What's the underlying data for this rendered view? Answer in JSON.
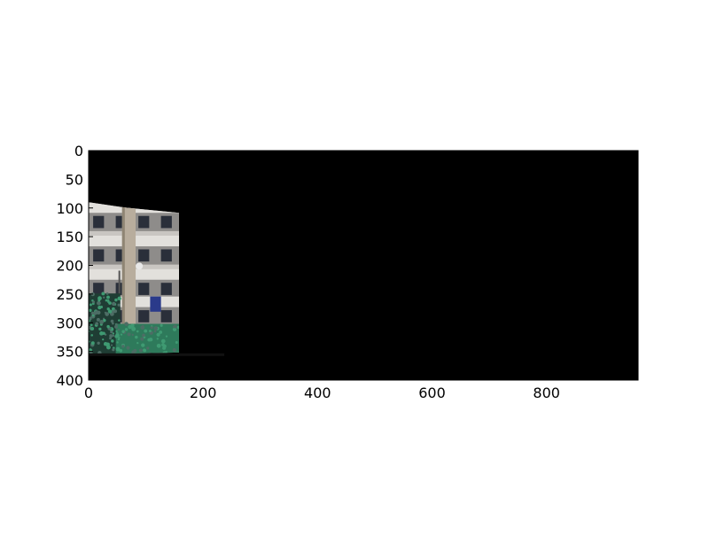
{
  "chart_data": {
    "type": "image",
    "title": "",
    "xlabel": "",
    "ylabel": "",
    "xlim": [
      0,
      960
    ],
    "ylim": [
      400,
      0
    ],
    "y_inverted": true,
    "xticks": [
      0,
      200,
      400,
      600,
      800
    ],
    "xtick_labels": [
      "0",
      "200",
      "400",
      "600",
      "800"
    ],
    "yticks": [
      0,
      50,
      100,
      150,
      200,
      250,
      300,
      350,
      400
    ],
    "ytick_labels": [
      "0",
      "50",
      "100",
      "150",
      "200",
      "250",
      "300",
      "350",
      "400"
    ],
    "grid": false,
    "background_color": "#000000",
    "photo_patch": {
      "content": "photo of a multi-storey building facade with balconies, a concrete column and green shrubs",
      "x_range": [
        0,
        158
      ],
      "y_range": [
        90,
        355
      ]
    },
    "colors": {
      "wall": "#c9c6c2",
      "wall_shadow": "#8e8c8a",
      "window": "#2a2f3a",
      "column": "#b8ad9d",
      "foliage_dark": "#1f3d34",
      "foliage": "#2e7a5b",
      "foliage_light": "#3f9a72"
    }
  }
}
